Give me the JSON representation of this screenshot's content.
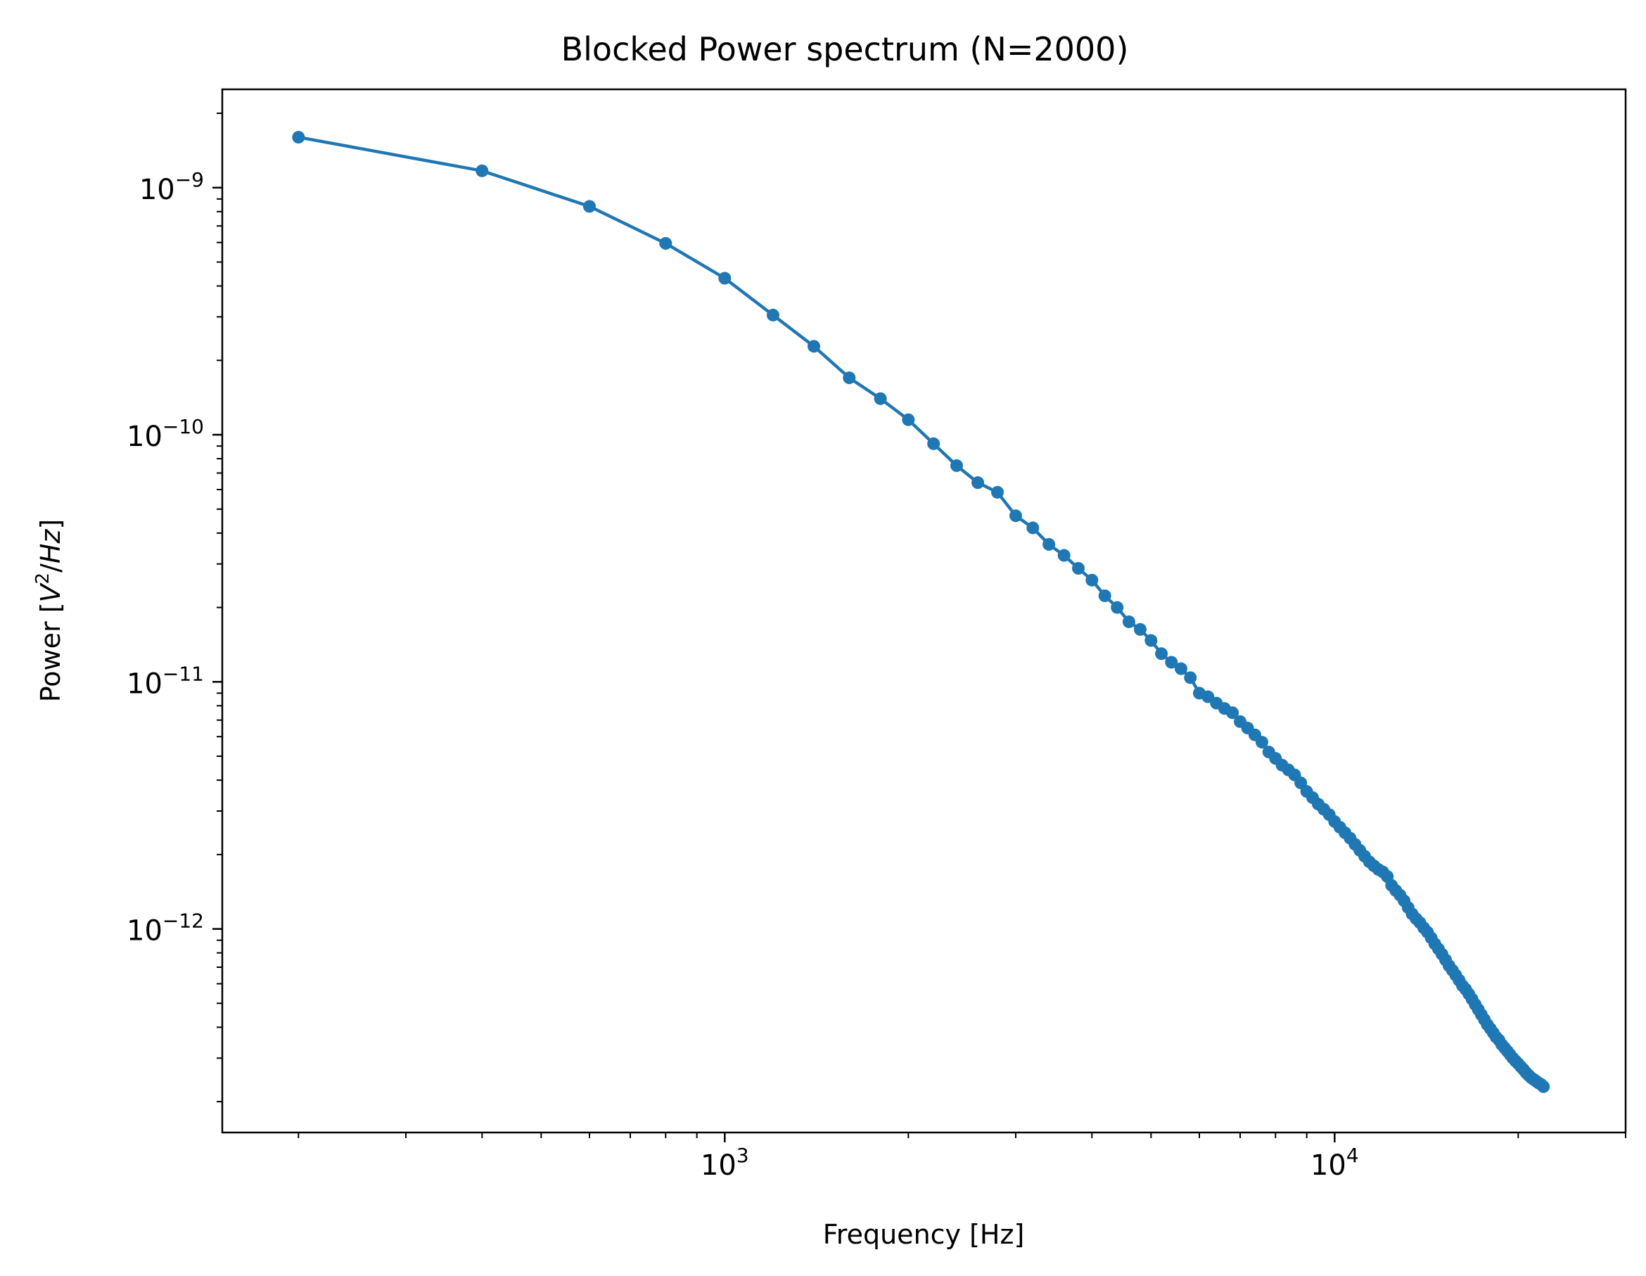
{
  "chart_data": {
    "type": "line",
    "title": "Blocked Power spectrum (N=2000)",
    "xlabel": "Frequency [Hz]",
    "ylabel": {
      "prefix": "Power [",
      "var": "V",
      "sup": "2",
      "mid": "/",
      "unit": "Hz",
      "suffix": "]"
    },
    "xscale": "log",
    "yscale": "log",
    "xlim": [
      150,
      30000
    ],
    "ylim": [
      1.5e-13,
      2.5e-09
    ],
    "grid": false,
    "legend": "none",
    "x_ticks": [
      {
        "value": 1000,
        "base": "10",
        "exp": "3"
      },
      {
        "value": 10000,
        "base": "10",
        "exp": "4"
      }
    ],
    "y_ticks": [
      {
        "value": 1e-12,
        "base": "10",
        "exp": "−12"
      },
      {
        "value": 1e-11,
        "base": "10",
        "exp": "−11"
      },
      {
        "value": 1e-10,
        "base": "10",
        "exp": "−10"
      },
      {
        "value": 1e-09,
        "base": "10",
        "exp": "−9"
      }
    ],
    "series": [
      {
        "color": "#1f77b4",
        "marker": "circle",
        "x": [
          200,
          400,
          600,
          800,
          1000,
          1200,
          1400,
          1600,
          1800,
          2000,
          2200,
          2400,
          2600,
          2800,
          3000,
          3200,
          3400,
          3600,
          3800,
          4000,
          4200,
          4400,
          4600,
          4800,
          5000,
          5200,
          5400,
          5600,
          5800,
          6000,
          6200,
          6400,
          6600,
          6800,
          7000,
          7200,
          7400,
          7600,
          7800,
          8000,
          8200,
          8400,
          8600,
          8800,
          9000,
          9200,
          9400,
          9600,
          9800,
          10000,
          10200,
          10400,
          10600,
          10800,
          11000,
          11200,
          11400,
          11600,
          11800,
          12000,
          12200,
          12400,
          12600,
          12800,
          13000,
          13200,
          13400,
          13600,
          13800,
          14000,
          14200,
          14400,
          14600,
          14800,
          15000,
          15200,
          15400,
          15600,
          15800,
          16000,
          16200,
          16400,
          16600,
          16800,
          17000,
          17200,
          17400,
          17600,
          17800,
          18000,
          18200,
          18400,
          18600,
          18800,
          19000,
          19200,
          19400,
          19600,
          19800,
          20000,
          20200,
          20400,
          20600,
          20800,
          21000,
          21200,
          21400,
          21600,
          21800,
          22000
        ],
        "y": [
          1.6e-09,
          1.17e-09,
          8.4e-10,
          5.95e-10,
          4.3e-10,
          3.05e-10,
          2.28e-10,
          1.7e-10,
          1.4e-10,
          1.15e-10,
          9.2e-11,
          7.5e-11,
          6.4e-11,
          5.85e-11,
          4.7e-11,
          4.2e-11,
          3.6e-11,
          3.25e-11,
          2.88e-11,
          2.58e-11,
          2.23e-11,
          2e-11,
          1.75e-11,
          1.63e-11,
          1.47e-11,
          1.3e-11,
          1.2e-11,
          1.13e-11,
          1.04e-11,
          9e-12,
          8.7e-12,
          8.2e-12,
          7.8e-12,
          7.5e-12,
          6.9e-12,
          6.5e-12,
          6.1e-12,
          5.7e-12,
          5.2e-12,
          4.9e-12,
          4.6e-12,
          4.4e-12,
          4.2e-12,
          3.9e-12,
          3.6e-12,
          3.4e-12,
          3.2e-12,
          3.05e-12,
          2.9e-12,
          2.72e-12,
          2.58e-12,
          2.45e-12,
          2.33e-12,
          2.2e-12,
          2.08e-12,
          1.97e-12,
          1.87e-12,
          1.8e-12,
          1.74e-12,
          1.7e-12,
          1.63e-12,
          1.5e-12,
          1.43e-12,
          1.37e-12,
          1.3e-12,
          1.22e-12,
          1.15e-12,
          1.1e-12,
          1.06e-12,
          1.01e-12,
          9.7e-13,
          9.2e-13,
          8.7e-13,
          8.3e-13,
          7.9e-13,
          7.5e-13,
          7.1e-13,
          6.8e-13,
          6.5e-13,
          6.2e-13,
          5.9e-13,
          5.7e-13,
          5.45e-13,
          5.2e-13,
          4.95e-13,
          4.72e-13,
          4.5e-13,
          4.3e-13,
          4.1e-13,
          3.95e-13,
          3.8e-13,
          3.65e-13,
          3.55e-13,
          3.4e-13,
          3.3e-13,
          3.2e-13,
          3.1e-13,
          3e-13,
          2.92e-13,
          2.85e-13,
          2.77e-13,
          2.7e-13,
          2.62e-13,
          2.56e-13,
          2.5e-13,
          2.46e-13,
          2.42e-13,
          2.38e-13,
          2.35e-13,
          2.3e-13
        ]
      }
    ]
  }
}
